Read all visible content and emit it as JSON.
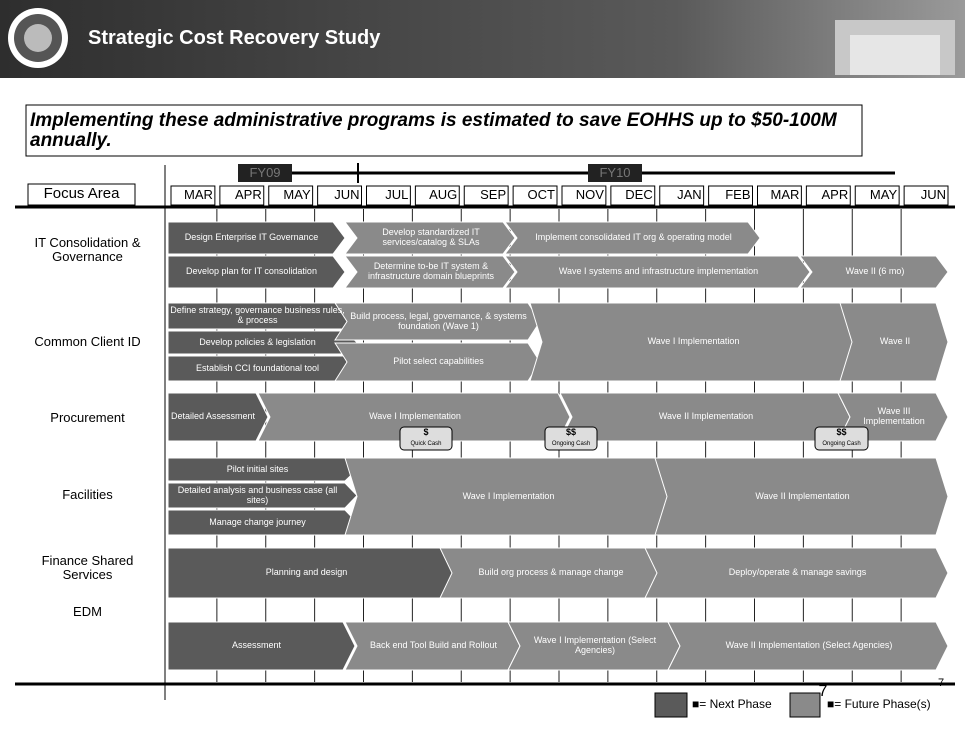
{
  "header": {
    "title": "Strategic Cost Recovery Study"
  },
  "subtitle": "Implementing these administrative programs is estimated to save EOHHS up to $50-100M annually.",
  "timeline": {
    "fiscal_years": [
      "FY09",
      "FY10"
    ],
    "focus_label": "Focus Area",
    "months": [
      "MAR",
      "APR",
      "MAY",
      "JUN",
      "JUL",
      "AUG",
      "SEP",
      "OCT",
      "NOV",
      "DEC",
      "JAN",
      "FEB",
      "MAR",
      "APR",
      "MAY",
      "JUN"
    ]
  },
  "sections": [
    {
      "label": "IT Consolidation & Governance",
      "bars": [
        {
          "label": "Design Enterprise IT Governance",
          "color": "#5a5a5a"
        },
        {
          "label": "Develop standardized IT services/catalog & SLAs",
          "color": "#8a8a8a"
        },
        {
          "label": "Implement consolidated IT org & operating model",
          "color": "#8a8a8a"
        },
        {
          "label": "Develop plan for IT consolidation",
          "color": "#5a5a5a"
        },
        {
          "label": "Determine to-be IT system & infrastructure domain blueprints",
          "color": "#8a8a8a"
        },
        {
          "label": "Wave I systems and infrastructure implementation",
          "color": "#8a8a8a"
        },
        {
          "label": "Wave II (6 mo)",
          "color": "#8a8a8a"
        }
      ]
    },
    {
      "label": "Common Client ID",
      "bars": [
        {
          "label": "Define strategy, governance business rules, & process",
          "color": "#5a5a5a"
        },
        {
          "label": "Develop policies & legislation",
          "color": "#5a5a5a"
        },
        {
          "label": "Establish CCI foundational tool",
          "color": "#5a5a5a"
        },
        {
          "label": "Build process, legal, governance, & systems foundation (Wave 1)",
          "color": "#8a8a8a"
        },
        {
          "label": "Pilot select capabilities",
          "color": "#8a8a8a"
        },
        {
          "label": "Wave I Implementation",
          "color": "#8a8a8a"
        },
        {
          "label": "Wave II",
          "color": "#8a8a8a"
        }
      ]
    },
    {
      "label": "Procurement",
      "bars": [
        {
          "label": "Detailed Assessment",
          "color": "#5a5a5a"
        },
        {
          "label": "Wave I Implementation",
          "color": "#8a8a8a"
        },
        {
          "label": "Wave II Implementation",
          "color": "#8a8a8a"
        },
        {
          "label": "Wave III Implementation",
          "color": "#8a8a8a"
        }
      ],
      "badges": [
        {
          "symbol": "$",
          "label": "Quick Cash"
        },
        {
          "symbol": "$$",
          "label": "Ongoing Cash"
        },
        {
          "symbol": "$$",
          "label": "Ongoing Cash"
        }
      ]
    },
    {
      "label": "Facilities",
      "bars": [
        {
          "label": "Pilot initial sites",
          "color": "#5a5a5a"
        },
        {
          "label": "Detailed analysis and business case (all sites)",
          "color": "#5a5a5a"
        },
        {
          "label": "Manage change journey",
          "color": "#5a5a5a"
        },
        {
          "label": "Wave I Implementation",
          "color": "#8a8a8a"
        },
        {
          "label": "Wave II Implementation",
          "color": "#8a8a8a"
        }
      ]
    },
    {
      "label": "Finance Shared Services",
      "bars": [
        {
          "label": "Planning and design",
          "color": "#5a5a5a"
        },
        {
          "label": "Build org process & manage change",
          "color": "#8a8a8a"
        },
        {
          "label": "Deploy/operate & manage savings",
          "color": "#8a8a8a"
        }
      ]
    },
    {
      "label": "EDM",
      "bars": [
        {
          "label": "Assessment",
          "color": "#5a5a5a"
        },
        {
          "label": "Back end Tool Build and Rollout",
          "color": "#8a8a8a"
        },
        {
          "label": "Wave I Implementation (Select Agencies)",
          "color": "#8a8a8a"
        },
        {
          "label": "Wave II Implementation (Select Agencies)",
          "color": "#8a8a8a"
        }
      ]
    }
  ],
  "legend": [
    {
      "label": "■= Next Phase",
      "color": "#5a5a5a"
    },
    {
      "label": "■= Future Phase(s)",
      "color": "#8a8a8a"
    }
  ],
  "page_numbers": [
    "7",
    "7"
  ]
}
